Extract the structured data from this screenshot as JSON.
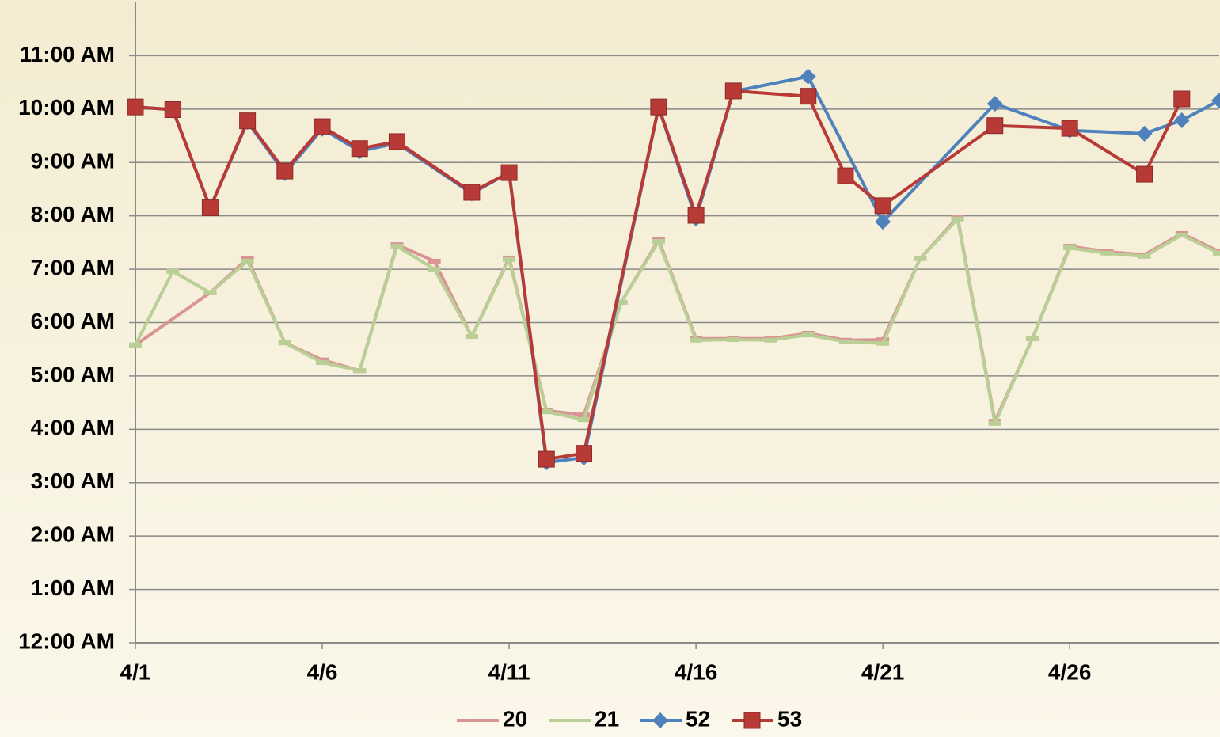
{
  "chart_data": {
    "type": "line",
    "xlim": [
      1,
      30
    ],
    "xticks": [
      {
        "value": 1,
        "label": "4/1"
      },
      {
        "value": 6,
        "label": "4/6"
      },
      {
        "value": 11,
        "label": "4/11"
      },
      {
        "value": 16,
        "label": "4/16"
      },
      {
        "value": 21,
        "label": "4/21"
      },
      {
        "value": 26,
        "label": "4/26"
      }
    ],
    "ylim": [
      0,
      12
    ],
    "yticks": [
      {
        "value": 0,
        "label": "12:00 AM"
      },
      {
        "value": 1,
        "label": "1:00 AM"
      },
      {
        "value": 2,
        "label": "2:00 AM"
      },
      {
        "value": 3,
        "label": "3:00 AM"
      },
      {
        "value": 4,
        "label": "4:00 AM"
      },
      {
        "value": 5,
        "label": "5:00 AM"
      },
      {
        "value": 6,
        "label": "6:00 AM"
      },
      {
        "value": 7,
        "label": "7:00 AM"
      },
      {
        "value": 8,
        "label": "8:00 AM"
      },
      {
        "value": 9,
        "label": "9:00 AM"
      },
      {
        "value": 10,
        "label": "10:00 AM"
      },
      {
        "value": 11,
        "label": "11:00 AM"
      }
    ],
    "grid": true,
    "legend": "bottom",
    "series": [
      {
        "name": "20",
        "color": "#d99594",
        "marker": "dash",
        "x": [
          1,
          3,
          4,
          5,
          6,
          7,
          8,
          9,
          10,
          11,
          12,
          13,
          14,
          15,
          16,
          17,
          18,
          19,
          20,
          21,
          22,
          23,
          24,
          25,
          26,
          27,
          28,
          29,
          30
        ],
        "values": [
          5.58,
          6.56,
          7.2,
          5.62,
          5.3,
          5.1,
          7.46,
          7.15,
          5.74,
          7.21,
          4.35,
          4.27,
          6.38,
          7.55,
          5.7,
          5.7,
          5.7,
          5.8,
          5.67,
          5.68,
          7.2,
          7.97,
          4.15,
          5.7,
          7.43,
          7.33,
          7.27,
          7.67,
          7.33
        ]
      },
      {
        "name": "21",
        "color": "#b9cf96",
        "marker": "dash",
        "x": [
          1,
          2,
          3,
          4,
          5,
          6,
          7,
          8,
          9,
          10,
          11,
          12,
          13,
          14,
          15,
          16,
          17,
          18,
          19,
          20,
          21,
          22,
          23,
          24,
          25,
          26,
          27,
          28,
          29,
          30
        ],
        "values": [
          5.58,
          6.96,
          6.56,
          7.15,
          5.62,
          5.25,
          5.1,
          7.43,
          7.0,
          5.74,
          7.18,
          4.33,
          4.18,
          6.38,
          7.52,
          5.67,
          5.68,
          5.67,
          5.77,
          5.64,
          5.61,
          7.2,
          7.94,
          4.11,
          5.7,
          7.4,
          7.3,
          7.24,
          7.64,
          7.3
        ]
      },
      {
        "name": "52",
        "color": "#4f81bd",
        "marker": "diamond",
        "x": [
          1,
          2,
          3,
          4,
          5,
          6,
          7,
          8,
          10,
          11,
          12,
          13,
          15,
          16,
          17,
          19,
          21,
          24,
          26,
          28,
          29,
          30
        ],
        "values": [
          10.04,
          9.99,
          8.15,
          9.76,
          8.8,
          9.63,
          9.21,
          9.36,
          8.42,
          8.81,
          3.38,
          3.47,
          10.03,
          7.95,
          10.33,
          10.61,
          7.89,
          10.1,
          9.6,
          9.54,
          9.79,
          10.16
        ]
      },
      {
        "name": "53",
        "color": "#b83a37",
        "marker": "square",
        "x": [
          1,
          2,
          3,
          4,
          5,
          6,
          7,
          8,
          10,
          11,
          12,
          13,
          15,
          16,
          17,
          19,
          20,
          21,
          24,
          26,
          28,
          29
        ],
        "values": [
          10.04,
          9.99,
          8.15,
          9.78,
          8.84,
          9.67,
          9.26,
          9.39,
          8.44,
          8.81,
          3.44,
          3.55,
          10.04,
          8.01,
          10.34,
          10.24,
          8.75,
          8.19,
          9.69,
          9.64,
          8.78,
          10.19
        ]
      }
    ]
  }
}
